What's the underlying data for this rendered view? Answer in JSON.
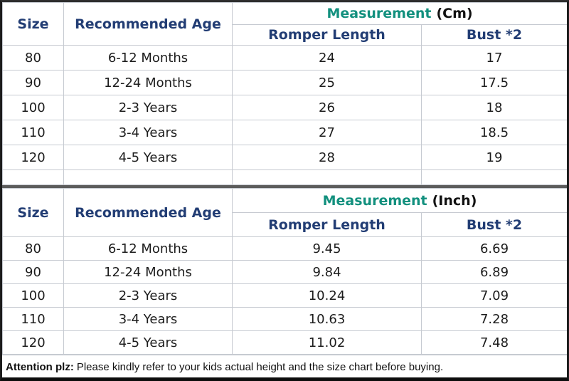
{
  "colors": {
    "header_navy": "#223d74",
    "measurement_teal": "#12907e",
    "body_text": "#1c1c1c",
    "grid_line": "#c6cad1",
    "thick_divider_gray": "#5c5c5c",
    "outer_border_black": "#0d0d0d",
    "background": "#ffffff"
  },
  "table_cm": {
    "col_size": "Size",
    "col_age": "Recommended Age",
    "measurement_label": "Measurement",
    "measurement_unit": "(Cm)",
    "col_length": "Romper Length",
    "col_bust": "Bust *2",
    "rows": [
      {
        "size": "80",
        "age": "6-12 Months",
        "length": "24",
        "bust": "17"
      },
      {
        "size": "90",
        "age": "12-24 Months",
        "length": "25",
        "bust": "17.5"
      },
      {
        "size": "100",
        "age": "2-3 Years",
        "length": "26",
        "bust": "18"
      },
      {
        "size": "110",
        "age": "3-4 Years",
        "length": "27",
        "bust": "18.5"
      },
      {
        "size": "120",
        "age": "4-5 Years",
        "length": "28",
        "bust": "19"
      }
    ]
  },
  "table_inch": {
    "col_size": "Size",
    "col_age": "Recommended Age",
    "measurement_label": "Measurement",
    "measurement_unit": "(Inch)",
    "col_length": "Romper Length",
    "col_bust": "Bust *2",
    "rows": [
      {
        "size": "80",
        "age": "6-12 Months",
        "length": "9.45",
        "bust": "6.69"
      },
      {
        "size": "90",
        "age": "12-24 Months",
        "length": "9.84",
        "bust": "6.89"
      },
      {
        "size": "100",
        "age": "2-3 Years",
        "length": "10.24",
        "bust": "7.09"
      },
      {
        "size": "110",
        "age": "3-4 Years",
        "length": "10.63",
        "bust": "7.28"
      },
      {
        "size": "120",
        "age": "4-5 Years",
        "length": "11.02",
        "bust": "7.48"
      }
    ]
  },
  "footer": {
    "label": "Attention plz:",
    "text": "Please kindly refer to your kids actual height and the size chart before buying."
  }
}
